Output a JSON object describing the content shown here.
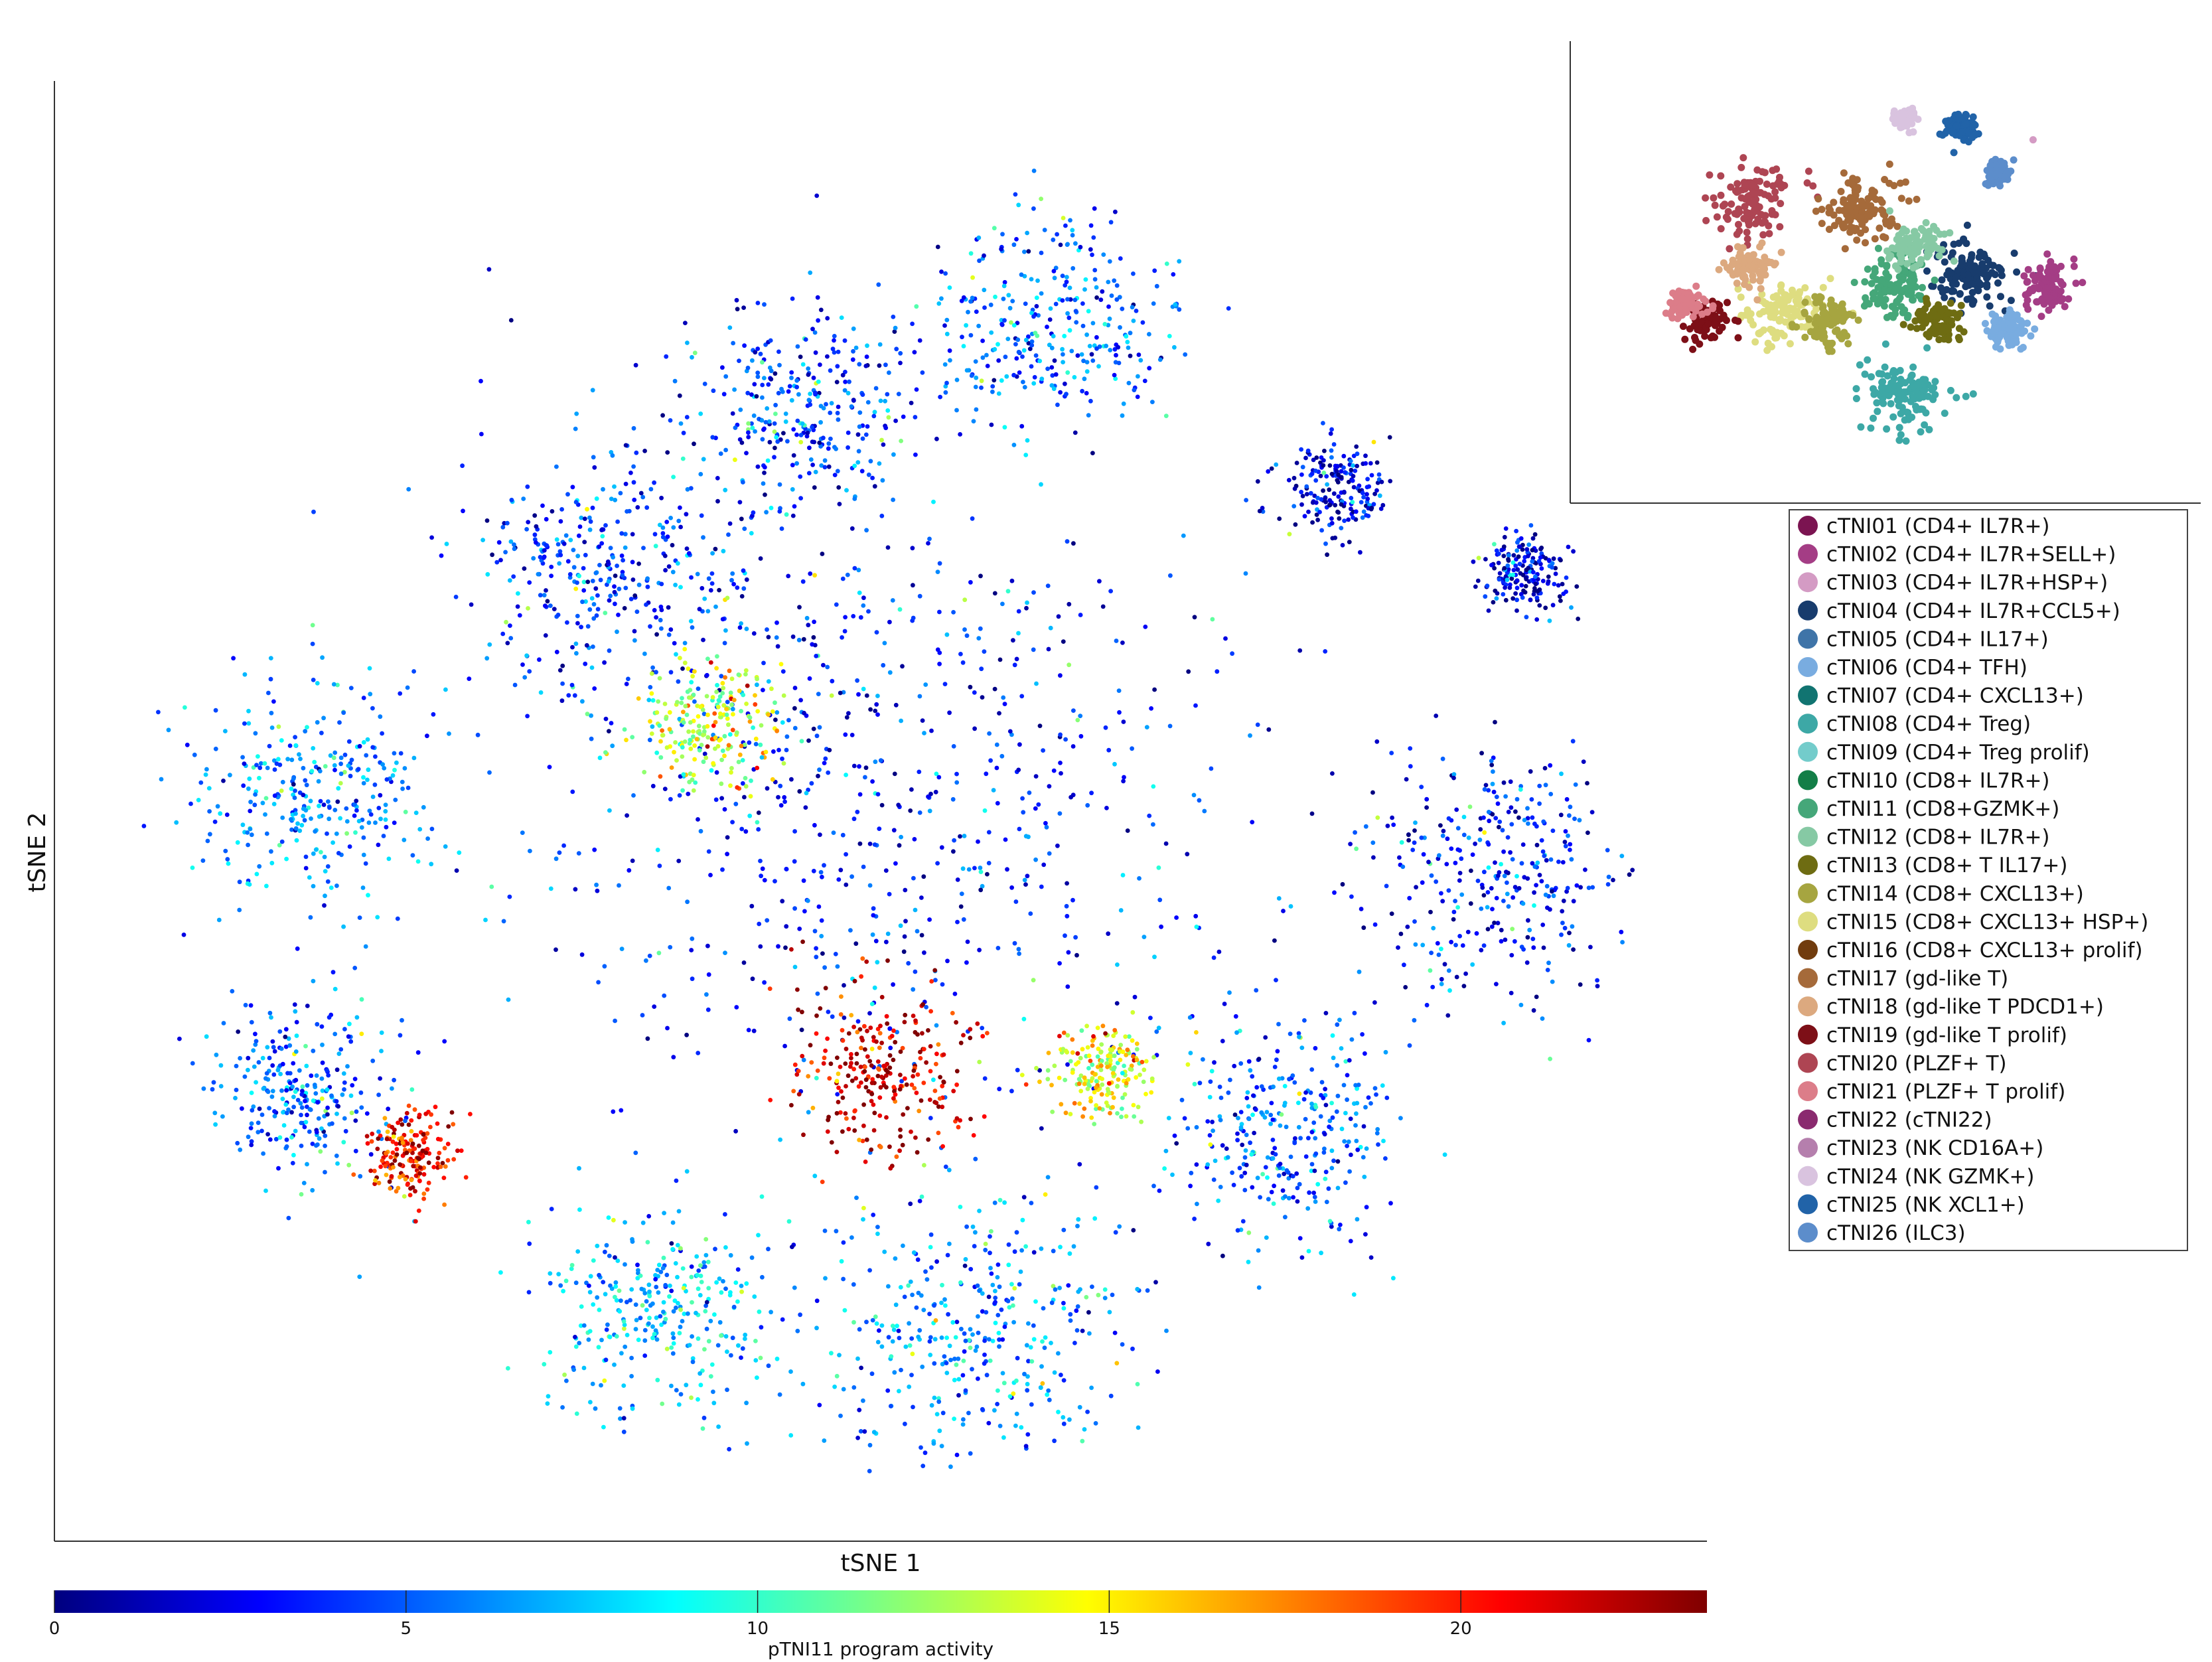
{
  "chart_data": {
    "type": "scatter",
    "xlabel": "tSNE 1",
    "ylabel": "tSNE 2",
    "grid": false,
    "color_scale": "jet",
    "colorbar": {
      "label": "pTNI11 program activity",
      "range": [
        0,
        23.5
      ],
      "ticks": [
        0,
        5,
        10,
        15,
        20
      ],
      "tick_labels": [
        "0",
        "5",
        "10",
        "15",
        "20"
      ]
    },
    "main_regions": [
      {
        "x": 0.0,
        "y": 0.0,
        "spread": 0.42,
        "activity": 3.5
      },
      {
        "x": -0.36,
        "y": -0.34,
        "spread": 0.16,
        "activity": 4
      },
      {
        "x": -0.1,
        "y": -0.56,
        "spread": 0.14,
        "activity": 4
      },
      {
        "x": 0.22,
        "y": -0.68,
        "spread": 0.14,
        "activity": 5
      },
      {
        "x": 0.58,
        "y": -0.45,
        "spread": 0.06,
        "activity": 2
      },
      {
        "x": 0.82,
        "y": -0.33,
        "spread": 0.05,
        "activity": 2
      },
      {
        "x": 0.78,
        "y": 0.1,
        "spread": 0.15,
        "activity": 3
      },
      {
        "x": -0.72,
        "y": -0.03,
        "spread": 0.14,
        "activity": 6
      },
      {
        "x": -0.75,
        "y": 0.4,
        "spread": 0.12,
        "activity": 5
      },
      {
        "x": -0.28,
        "y": 0.7,
        "spread": 0.14,
        "activity": 7
      },
      {
        "x": 0.12,
        "y": 0.72,
        "spread": 0.18,
        "activity": 6
      },
      {
        "x": 0.52,
        "y": 0.45,
        "spread": 0.14,
        "activity": 5
      },
      {
        "x": 0.0,
        "y": 0.36,
        "spread": 0.1,
        "activity": 21.5
      },
      {
        "x": -0.22,
        "y": -0.12,
        "spread": 0.08,
        "activity": 13
      },
      {
        "x": -0.6,
        "y": 0.48,
        "spread": 0.05,
        "activity": 20
      },
      {
        "x": 0.28,
        "y": 0.36,
        "spread": 0.06,
        "activity": 14
      }
    ],
    "inset_regions": [
      {
        "x": -0.55,
        "y": -0.4,
        "spread": 0.18,
        "cluster": "cTNI20 (PLZF+ T)"
      },
      {
        "x": -0.05,
        "y": -0.35,
        "spread": 0.18,
        "cluster": "cTNI17 (gd-like T)"
      },
      {
        "x": 0.45,
        "y": 0.0,
        "spread": 0.18,
        "cluster": "cTNI04 (CD4+ IL7R+CCL5+)"
      },
      {
        "x": 0.8,
        "y": 0.05,
        "spread": 0.12,
        "cluster": "cTNI02 (CD4+ IL7R+SELL+)"
      },
      {
        "x": 0.15,
        "y": 0.65,
        "spread": 0.2,
        "cluster": "cTNI08 (CD4+ Treg)"
      },
      {
        "x": -0.4,
        "y": 0.2,
        "spread": 0.18,
        "cluster": "cTNI15 (CD8+ CXCL13+ HSP+)"
      },
      {
        "x": -0.75,
        "y": 0.25,
        "spread": 0.1,
        "cluster": "cTNI19 (gd-like T prolif)"
      },
      {
        "x": -0.85,
        "y": 0.15,
        "spread": 0.08,
        "cluster": "cTNI21 (PLZF+ T prolif)"
      },
      {
        "x": -0.55,
        "y": -0.05,
        "spread": 0.1,
        "cluster": "cTNI18 (gd-like T PDCD1+)"
      },
      {
        "x": 0.1,
        "y": 0.05,
        "spread": 0.16,
        "cluster": "cTNI11 (CD8+GZMK+)"
      },
      {
        "x": 0.3,
        "y": 0.25,
        "spread": 0.1,
        "cluster": "cTNI13 (CD8+ T IL17+)"
      },
      {
        "x": 0.2,
        "y": -0.15,
        "spread": 0.12,
        "cluster": "cTNI12 (CD8+ IL7R+)"
      },
      {
        "x": 0.4,
        "y": -0.8,
        "spread": 0.08,
        "cluster": "cTNI25 (NK XCL1+)"
      },
      {
        "x": 0.15,
        "y": -0.85,
        "spread": 0.06,
        "cluster": "cTNI24 (NK GZMK+)"
      },
      {
        "x": 0.58,
        "y": -0.55,
        "spread": 0.06,
        "cluster": "cTNI26 (ILC3)"
      },
      {
        "x": 0.82,
        "y": -0.72,
        "spread": 0.05,
        "cluster": "cTNI03 (CD4+ IL7R+HSP+)"
      },
      {
        "x": 0.62,
        "y": 0.3,
        "spread": 0.1,
        "cluster": "cTNI06 (CD4+ TFH)"
      },
      {
        "x": -0.2,
        "y": 0.25,
        "spread": 0.12,
        "cluster": "cTNI14 (CD8+ CXCL13+)"
      }
    ]
  },
  "legend": {
    "entries": [
      {
        "label": "cTNI01 (CD4+ IL7R+)",
        "color": "#7b1451"
      },
      {
        "label": "cTNI02 (CD4+ IL7R+SELL+)",
        "color": "#a43d85"
      },
      {
        "label": "cTNI03 (CD4+ IL7R+HSP+)",
        "color": "#d49bc4"
      },
      {
        "label": "cTNI04 (CD4+ IL7R+CCL5+)",
        "color": "#183c6d"
      },
      {
        "label": "cTNI05 (CD4+ IL17+)",
        "color": "#3f74a8"
      },
      {
        "label": "cTNI06 (CD4+ TFH)",
        "color": "#79ace0"
      },
      {
        "label": "cTNI07 (CD4+ CXCL13+)",
        "color": "#117471"
      },
      {
        "label": "cTNI08 (CD4+ Treg)",
        "color": "#3da8a6"
      },
      {
        "label": "cTNI09 (CD4+ Treg prolif)",
        "color": "#73cccb"
      },
      {
        "label": "cTNI10 (CD8+ IL7R+)",
        "color": "#137e47"
      },
      {
        "label": "cTNI11 (CD8+GZMK+)",
        "color": "#45a779"
      },
      {
        "label": "cTNI12 (CD8+ IL7R+)",
        "color": "#86c9a4"
      },
      {
        "label": "cTNI13 (CD8+ T IL17+)",
        "color": "#6e6c12"
      },
      {
        "label": "cTNI14 (CD8+ CXCL13+)",
        "color": "#a6a540"
      },
      {
        "label": "cTNI15 (CD8+ CXCL13+ HSP+)",
        "color": "#dedd80"
      },
      {
        "label": "cTNI16 (CD8+ CXCL13+ prolif)",
        "color": "#713c0e"
      },
      {
        "label": "cTNI17 (gd-like T)",
        "color": "#a56a3a"
      },
      {
        "label": "cTNI18 (gd-like T PDCD1+)",
        "color": "#dca97f"
      },
      {
        "label": "cTNI19 (gd-like T prolif)",
        "color": "#7d0f17"
      },
      {
        "label": "cTNI20 (PLZF+ T)",
        "color": "#ae4553"
      },
      {
        "label": "cTNI21 (PLZF+ T prolif)",
        "color": "#dc7d89"
      },
      {
        "label": "cTNI22 (cTNI22)",
        "color": "#8a2a6f"
      },
      {
        "label": "cTNI23 (NK CD16A+)",
        "color": "#b57fad"
      },
      {
        "label": "cTNI24 (NK GZMK+)",
        "color": "#d9c3df"
      },
      {
        "label": "cTNI25 (NK XCL1+)",
        "color": "#2163a8"
      },
      {
        "label": "cTNI26 (ILC3)",
        "color": "#5c8dcb"
      }
    ]
  }
}
